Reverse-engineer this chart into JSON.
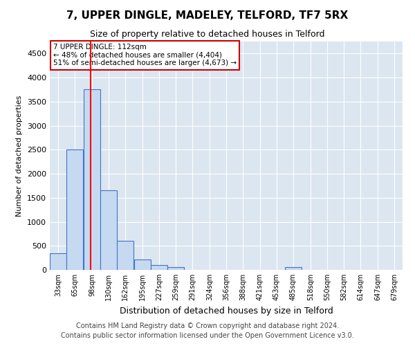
{
  "title1": "7, UPPER DINGLE, MADELEY, TELFORD, TF7 5RX",
  "title2": "Size of property relative to detached houses in Telford",
  "xlabel": "Distribution of detached houses by size in Telford",
  "ylabel": "Number of detached properties",
  "footnote": "Contains HM Land Registry data © Crown copyright and database right 2024.\nContains public sector information licensed under the Open Government Licence v3.0.",
  "bins": [
    33,
    65,
    98,
    130,
    162,
    195,
    227,
    259,
    291,
    324,
    356,
    388,
    421,
    453,
    485,
    518,
    550,
    582,
    614,
    647,
    679
  ],
  "values": [
    350,
    2500,
    3750,
    1650,
    600,
    220,
    100,
    60,
    0,
    0,
    0,
    0,
    0,
    0,
    60,
    0,
    0,
    0,
    0,
    0,
    0
  ],
  "bar_color": "#c5d9f1",
  "bar_edge_color": "#4472c4",
  "red_line_x": 112,
  "ylim": [
    0,
    4750
  ],
  "yticks": [
    0,
    500,
    1000,
    1500,
    2000,
    2500,
    3000,
    3500,
    4000,
    4500
  ],
  "annotation_text": "7 UPPER DINGLE: 112sqm\n← 48% of detached houses are smaller (4,404)\n51% of semi-detached houses are larger (4,673) →",
  "annotation_box_color": "#ffffff",
  "annotation_box_edge_color": "#cc0000",
  "title1_fontsize": 11,
  "title2_fontsize": 9,
  "footnote_fontsize": 7,
  "bg_color": "#dce6f1"
}
